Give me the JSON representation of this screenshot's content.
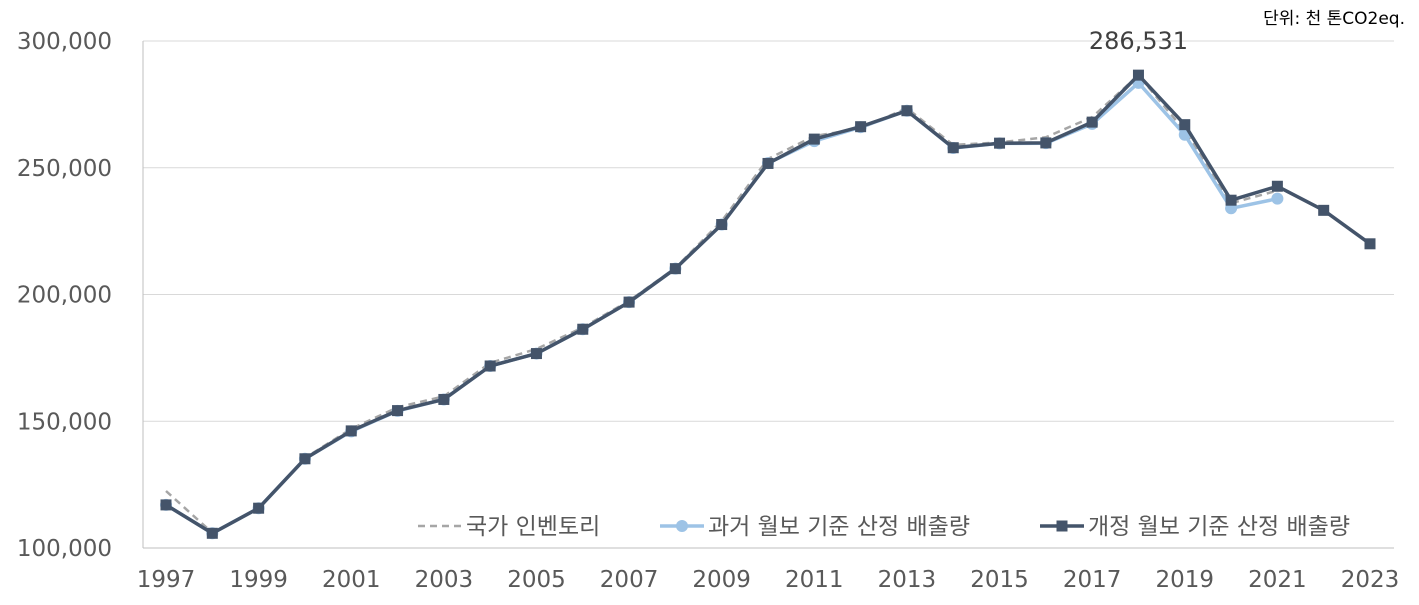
{
  "chart_data": {
    "type": "line",
    "unit_label": "단위: 천 톤CO2eq.",
    "x": [
      1997,
      1998,
      1999,
      2000,
      2001,
      2002,
      2003,
      2004,
      2005,
      2006,
      2007,
      2008,
      2009,
      2010,
      2011,
      2012,
      2013,
      2014,
      2015,
      2016,
      2017,
      2018,
      2019,
      2020,
      2021,
      2022,
      2023
    ],
    "x_tick_labels": [
      "1997",
      "1999",
      "2001",
      "2003",
      "2005",
      "2007",
      "2009",
      "2011",
      "2013",
      "2015",
      "2017",
      "2019",
      "2021",
      "2023"
    ],
    "y_tick_labels": [
      "100,000",
      "150,000",
      "200,000",
      "250,000",
      "300,000"
    ],
    "y_ticks": [
      100000,
      150000,
      200000,
      250000,
      300000
    ],
    "ylim": [
      100000,
      300000
    ],
    "grid": true,
    "legend_position": "bottom-right",
    "series": [
      {
        "name": "국가 인벤토리",
        "style": "dashed",
        "color": "#A6A6A6",
        "values": [
          122500,
          106000,
          115800,
          135500,
          147000,
          155500,
          159800,
          173000,
          178500,
          187000,
          197500,
          210500,
          229000,
          253500,
          262500,
          265500,
          273500,
          259000,
          260000,
          262000,
          270000,
          286500,
          264500,
          236000,
          241000,
          null,
          null
        ]
      },
      {
        "name": "과거 월보 기준 산정 배출량",
        "style": "solid-circle",
        "color": "#9DC3E6",
        "values": [
          117000,
          105800,
          115700,
          135200,
          146000,
          154100,
          158600,
          171800,
          176700,
          186300,
          197000,
          210200,
          227600,
          251800,
          260500,
          266000,
          272500,
          257800,
          259600,
          259700,
          267300,
          283500,
          263000,
          234000,
          237800,
          null,
          null
        ]
      },
      {
        "name": "개정 월보 기준 산정 배출량",
        "style": "solid-square",
        "color": "#44546A",
        "values": [
          117000,
          105800,
          115700,
          135200,
          146200,
          154200,
          158600,
          171800,
          176700,
          186300,
          197000,
          210200,
          227600,
          251700,
          261300,
          266200,
          272500,
          257900,
          259700,
          259800,
          268000,
          286531,
          267000,
          237200,
          242700,
          233200,
          220000
        ]
      }
    ],
    "annotations": [
      {
        "text": "286,531",
        "x": 2018,
        "series": "개정 월보 기준 산정 배출량"
      }
    ]
  }
}
